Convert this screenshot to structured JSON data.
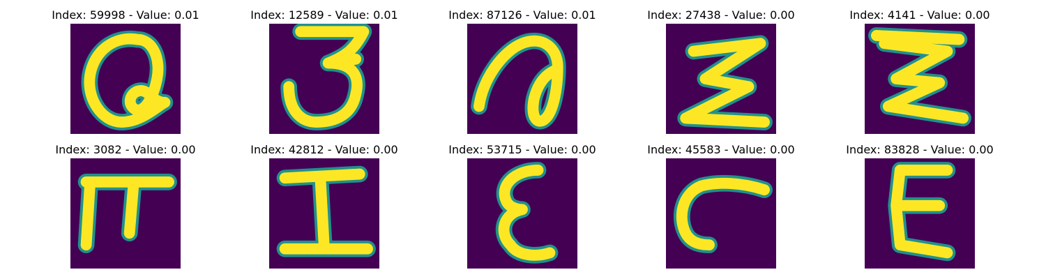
{
  "colors": {
    "background": "#440154",
    "stroke": "#fde725",
    "edge": "#21918c"
  },
  "panels": [
    {
      "index": "59998",
      "value": "0.01",
      "glyph": "a-loop-icon"
    },
    {
      "index": "12589",
      "value": "0.01",
      "glyph": "three-hook-icon"
    },
    {
      "index": "87126",
      "value": "0.01",
      "glyph": "a-tail-icon"
    },
    {
      "index": "27438",
      "value": "0.00",
      "glyph": "sigma-icon"
    },
    {
      "index": "4141",
      "value": "0.00",
      "glyph": "sigma-icon"
    },
    {
      "index": "3082",
      "value": "0.00",
      "glyph": "pi-icon"
    },
    {
      "index": "42812",
      "value": "0.00",
      "glyph": "capital-i-icon"
    },
    {
      "index": "53715",
      "value": "0.00",
      "glyph": "epsilon-icon"
    },
    {
      "index": "45583",
      "value": "0.00",
      "glyph": "c-curve-icon"
    },
    {
      "index": "83828",
      "value": "0.00",
      "glyph": "epsilon-icon"
    }
  ]
}
